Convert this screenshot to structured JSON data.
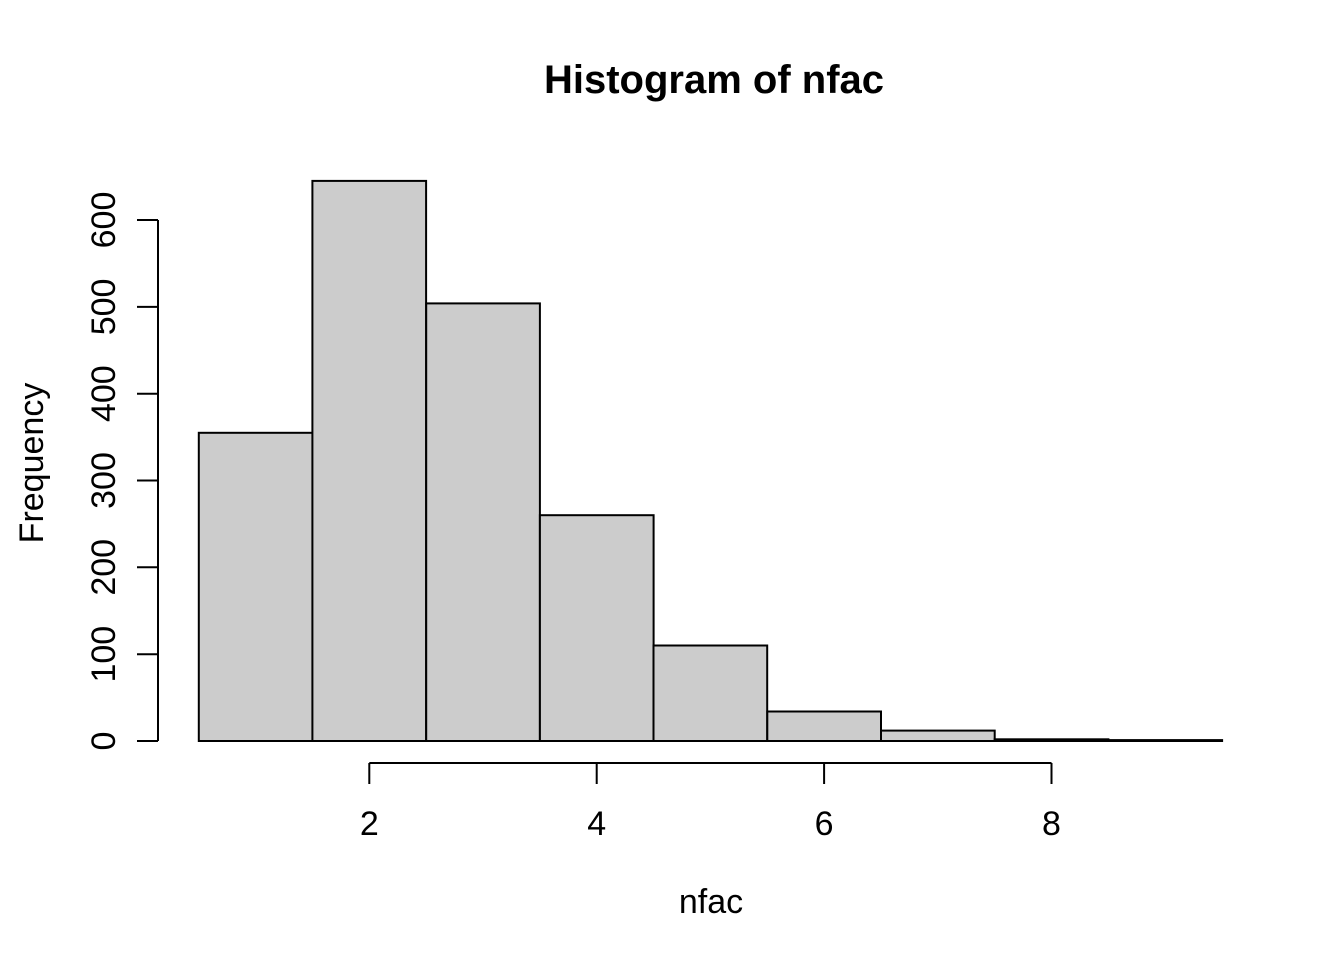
{
  "page": {
    "background": "#FFFFFF"
  },
  "chart_data": {
    "type": "bar",
    "variant": "histogram",
    "title": "Histogram of nfac",
    "xlabel": "nfac",
    "ylabel": "Frequency",
    "bin_breaks": [
      0.5,
      1.5,
      2.5,
      3.5,
      4.5,
      5.5,
      6.5,
      7.5,
      8.5,
      9.5
    ],
    "bin_centers": [
      1,
      2,
      3,
      4,
      5,
      6,
      7,
      8,
      9
    ],
    "counts": [
      355,
      645,
      504,
      260,
      110,
      34,
      12,
      2,
      1
    ],
    "x_ticks": [
      2,
      4,
      6,
      8
    ],
    "y_ticks": [
      0,
      100,
      200,
      300,
      400,
      500,
      600
    ],
    "xlim": [
      0.5,
      9.5
    ],
    "ylim": [
      0,
      645
    ],
    "bar_fill": "#CCCCCC",
    "bar_stroke": "#000000",
    "axis_color": "#000000",
    "grid": false,
    "legend": false
  }
}
